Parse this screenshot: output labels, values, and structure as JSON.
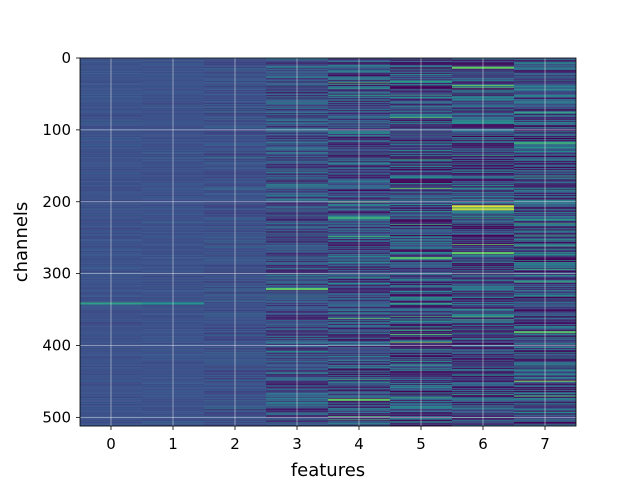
{
  "chart_data": {
    "type": "heatmap",
    "title": "",
    "xlabel": "features",
    "ylabel": "channels",
    "x_categories": [
      "0",
      "1",
      "2",
      "3",
      "4",
      "5",
      "6",
      "7"
    ],
    "x_ticks": [
      0,
      1,
      2,
      3,
      4,
      5,
      6,
      7
    ],
    "y_ticks": [
      0,
      100,
      200,
      300,
      400,
      500
    ],
    "xlim": [
      -0.5,
      7.5
    ],
    "ylim": [
      512,
      0
    ],
    "n_rows": 512,
    "n_cols": 8,
    "y_axis_inverted": true,
    "colormap": "viridis",
    "grid": true,
    "column_variation": [
      0.03,
      0.03,
      0.06,
      0.17,
      0.22,
      0.26,
      0.27,
      0.27
    ],
    "highlights": [
      {
        "x": 0,
        "y": 340,
        "value": 0.55
      },
      {
        "x": 1,
        "y": 340,
        "value": 0.5
      },
      {
        "x": 3,
        "y": 320,
        "value": 0.75
      },
      {
        "x": 4,
        "y": 474,
        "value": 0.75
      },
      {
        "x": 4,
        "y": 221,
        "value": 0.6
      },
      {
        "x": 5,
        "y": 277,
        "value": 0.7
      },
      {
        "x": 6,
        "y": 205,
        "value": 0.95
      },
      {
        "x": 6,
        "y": 209,
        "value": 0.9
      },
      {
        "x": 6,
        "y": 12,
        "value": 0.75
      },
      {
        "x": 6,
        "y": 270,
        "value": 0.75
      },
      {
        "x": 7,
        "y": 380,
        "value": 0.7
      },
      {
        "x": 7,
        "y": 117,
        "value": 0.6
      }
    ],
    "colors": {
      "base": "#3b528b",
      "grid": "#ffffff",
      "spine": "#000000"
    }
  }
}
